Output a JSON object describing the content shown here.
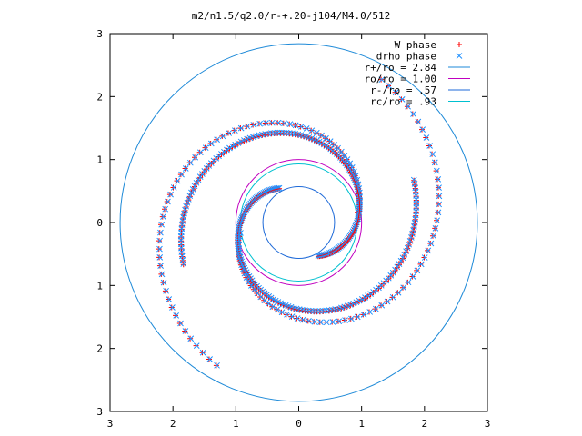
{
  "chart_data": {
    "type": "scatter",
    "title": "m2/n1.5/q2.0/r-+.20-j104/M4.0/512",
    "xlim": [
      -3,
      3
    ],
    "ylim": [
      -3,
      3
    ],
    "x_ticks": [
      -3,
      -2,
      -1,
      0,
      1,
      2,
      3
    ],
    "y_ticks": [
      -3,
      -2,
      -1,
      0,
      1,
      2,
      3
    ],
    "x_tick_labels": [
      "3",
      "2",
      "1",
      "0",
      "1",
      "2",
      "3"
    ],
    "y_tick_labels": [
      "3",
      "2",
      "1",
      "0",
      "1",
      "2",
      "3"
    ],
    "legend_position": "top-right",
    "grid": false,
    "series": [
      {
        "name": "W phase",
        "kind": "points",
        "marker": "plus",
        "color": "#ff0000",
        "note": "two-armed spiral, points sampled along each arm",
        "arms": [
          {
            "theta_start_deg": 190,
            "r_start": 0.95,
            "r_end": 2.62,
            "turn_deg": 230
          },
          {
            "theta_start_deg": 10,
            "r_start": 0.95,
            "r_end": 2.62,
            "turn_deg": 230
          }
        ],
        "inner_arms": [
          {
            "theta_start_deg": 120,
            "r_start": 0.62,
            "r_end": 1.95,
            "turn_deg": 260
          },
          {
            "theta_start_deg": 300,
            "r_start": 0.62,
            "r_end": 1.95,
            "turn_deg": 260
          }
        ]
      },
      {
        "name": "drho phase",
        "kind": "points",
        "marker": "cross",
        "color": "#1e90ff",
        "note": "two-armed spiral, nearly coincident with W phase"
      },
      {
        "name": "r+/ro = 2.84",
        "kind": "circle",
        "radius": 2.84,
        "color": "#1e8ad8"
      },
      {
        "name": "ro/ro = 1.00",
        "kind": "circle",
        "radius": 1.0,
        "color": "#c000c0"
      },
      {
        "name": "r-/ro = .57",
        "kind": "circle",
        "radius": 0.57,
        "color": "#1e6ad8"
      },
      {
        "name": "rc/ro = .93",
        "kind": "circle",
        "radius": 0.93,
        "color": "#00c0d0"
      }
    ]
  }
}
